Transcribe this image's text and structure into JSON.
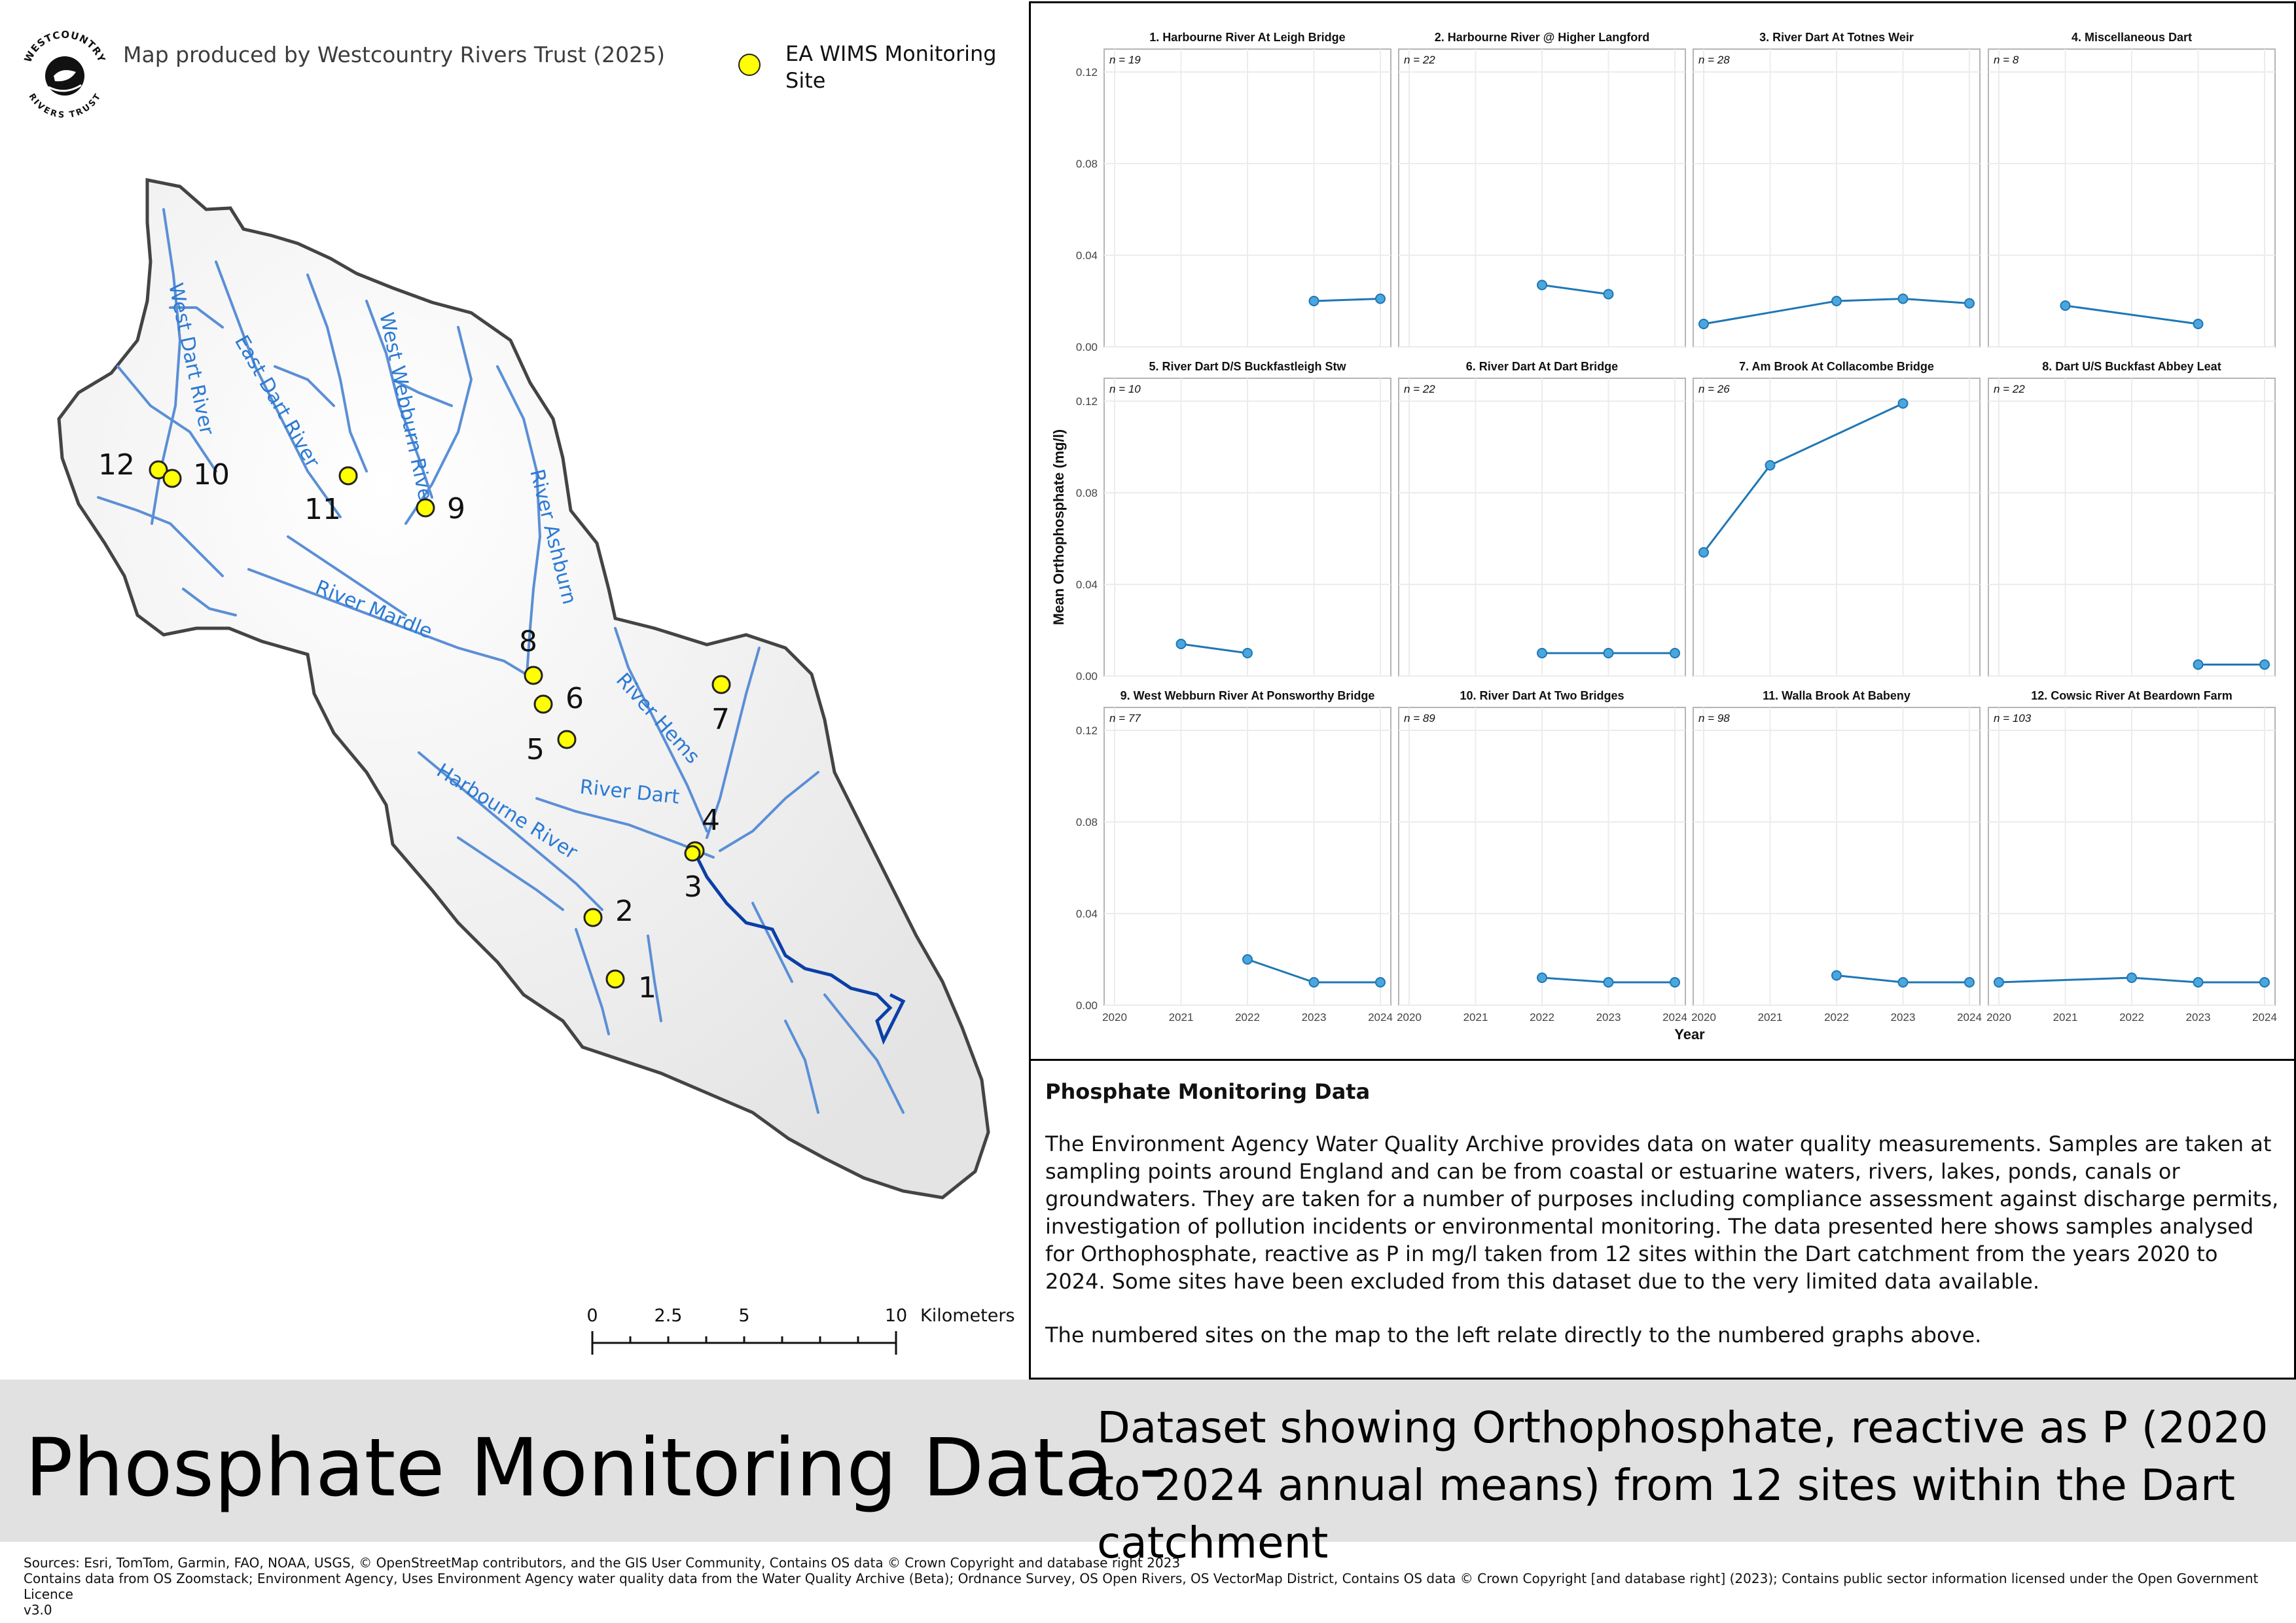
{
  "map": {
    "credit": "Map produced by Westcountry Rivers Trust (2025)",
    "logo": {
      "top_text": "WESTCOUNTRY",
      "bottom_text": "RIVERS TRUST"
    },
    "legend": {
      "label": "EA WIMS Monitoring Site",
      "symbol_color": "#ffff00"
    },
    "river_labels": [
      "West Dart River",
      "East Dart River",
      "West Webburn River",
      "River Ashburn",
      "River Mardle",
      "River Hems",
      "River Dart",
      "Harbourne River"
    ],
    "site_numbers": [
      "12",
      "10",
      "11",
      "9",
      "8",
      "6",
      "5",
      "7",
      "4",
      "3",
      "2",
      "1"
    ],
    "scalebar": {
      "ticks": [
        "0",
        "2.5",
        "5",
        "10"
      ],
      "unit": "Kilometers"
    },
    "colors": {
      "river": "#2b7ad4",
      "main_river": "#0b3fa8",
      "boundary": "#444444",
      "site": "#ffff00"
    }
  },
  "charts": {
    "y_axis_label": "Mean Orthophosphate (mg/l)",
    "x_axis_label": "Year",
    "y_ticks": [
      "0.00",
      "0.04",
      "0.08",
      "0.12"
    ],
    "x_ticks": [
      "2020",
      "2021",
      "2022",
      "2023",
      "2024"
    ],
    "colors": {
      "line": "#1f77b4",
      "marker": "#4aa6dd"
    }
  },
  "chart_data": {
    "type": "line",
    "xlabel": "Year",
    "ylabel": "Mean Orthophosphate (mg/l)",
    "xlim": [
      2020,
      2024
    ],
    "ylim": [
      0,
      0.13
    ],
    "grid": true,
    "panels": [
      {
        "title": "1. Harbourne River At Leigh Bridge",
        "n": "n = 19",
        "points": [
          [
            2023,
            0.02
          ],
          [
            2024,
            0.021
          ]
        ]
      },
      {
        "title": "2. Harbourne River @ Higher Langford",
        "n": "n = 22",
        "points": [
          [
            2022,
            0.027
          ],
          [
            2023,
            0.023
          ]
        ]
      },
      {
        "title": "3. River Dart At Totnes Weir",
        "n": "n = 28",
        "points": [
          [
            2020,
            0.01
          ],
          [
            2022,
            0.02
          ],
          [
            2023,
            0.021
          ],
          [
            2024,
            0.019
          ]
        ]
      },
      {
        "title": "4. Miscellaneous Dart",
        "n": "n = 8",
        "points": [
          [
            2021,
            0.018
          ],
          [
            2023,
            0.01
          ]
        ]
      },
      {
        "title": "5. River Dart D/S Buckfastleigh Stw",
        "n": "n = 10",
        "points": [
          [
            2021,
            0.014
          ],
          [
            2022,
            0.01
          ]
        ]
      },
      {
        "title": "6. River Dart At Dart Bridge",
        "n": "n = 22",
        "points": [
          [
            2022,
            0.01
          ],
          [
            2023,
            0.01
          ],
          [
            2024,
            0.01
          ]
        ]
      },
      {
        "title": "7. Am Brook At Collacombe Bridge",
        "n": "n = 26",
        "points": [
          [
            2020,
            0.054
          ],
          [
            2021,
            0.092
          ],
          [
            2023,
            0.119
          ]
        ]
      },
      {
        "title": "8. Dart U/S Buckfast Abbey Leat",
        "n": "n = 22",
        "points": [
          [
            2023,
            0.005
          ],
          [
            2024,
            0.005
          ]
        ]
      },
      {
        "title": "9. West Webburn River At Ponsworthy Bridge",
        "n": "n = 77",
        "points": [
          [
            2022,
            0.02
          ],
          [
            2023,
            0.01
          ],
          [
            2024,
            0.01
          ]
        ]
      },
      {
        "title": "10. River Dart At Two Bridges",
        "n": "n = 89",
        "points": [
          [
            2022,
            0.012
          ],
          [
            2023,
            0.01
          ],
          [
            2024,
            0.01
          ]
        ]
      },
      {
        "title": "11. Walla Brook At Babeny",
        "n": "n = 98",
        "points": [
          [
            2022,
            0.013
          ],
          [
            2023,
            0.01
          ],
          [
            2024,
            0.01
          ]
        ]
      },
      {
        "title": "12. Cowsic River At Beardown Farm",
        "n": "n = 103",
        "points": [
          [
            2020,
            0.01
          ],
          [
            2022,
            0.012
          ],
          [
            2023,
            0.01
          ],
          [
            2024,
            0.01
          ]
        ]
      }
    ]
  },
  "info": {
    "title": "Phosphate Monitoring Data",
    "paragraph1": "The Environment Agency Water Quality Archive provides data on water quality measurements. Samples are taken at sampling points around England and can be from coastal or estuarine waters, rivers, lakes, ponds, canals or groundwaters. They are taken for a number of purposes including compliance assessment against discharge permits, investigation of pollution incidents or environmental monitoring. The data presented here shows samples analysed for Orthophosphate, reactive as P in mg/l taken from 12 sites within the Dart catchment from the years 2020 to 2024. Some sites have been excluded from this dataset due to the very limited data available.",
    "paragraph2": "The numbered sites on the map to the left relate directly to the numbered graphs above."
  },
  "banner": {
    "title": "Phosphate Monitoring Data -",
    "subtitle": "Dataset showing Orthophosphate, reactive as P (2020 to 2024 annual means) from 12 sites within the Dart catchment"
  },
  "sources": [
    "Sources: Esri, TomTom, Garmin, FAO, NOAA, USGS, © OpenStreetMap contributors, and the GIS User Community, Contains OS data © Crown Copyright and database right 2023",
    "Contains data from OS Zoomstack; Environment Agency, Uses Environment Agency water quality data from the Water Quality Archive (Beta); Ordnance Survey, OS Open Rivers, OS VectorMap District, Contains OS data © Crown Copyright [and database right] (2023); Contains public sector information licensed under the Open Government Licence",
    "v3.0"
  ]
}
